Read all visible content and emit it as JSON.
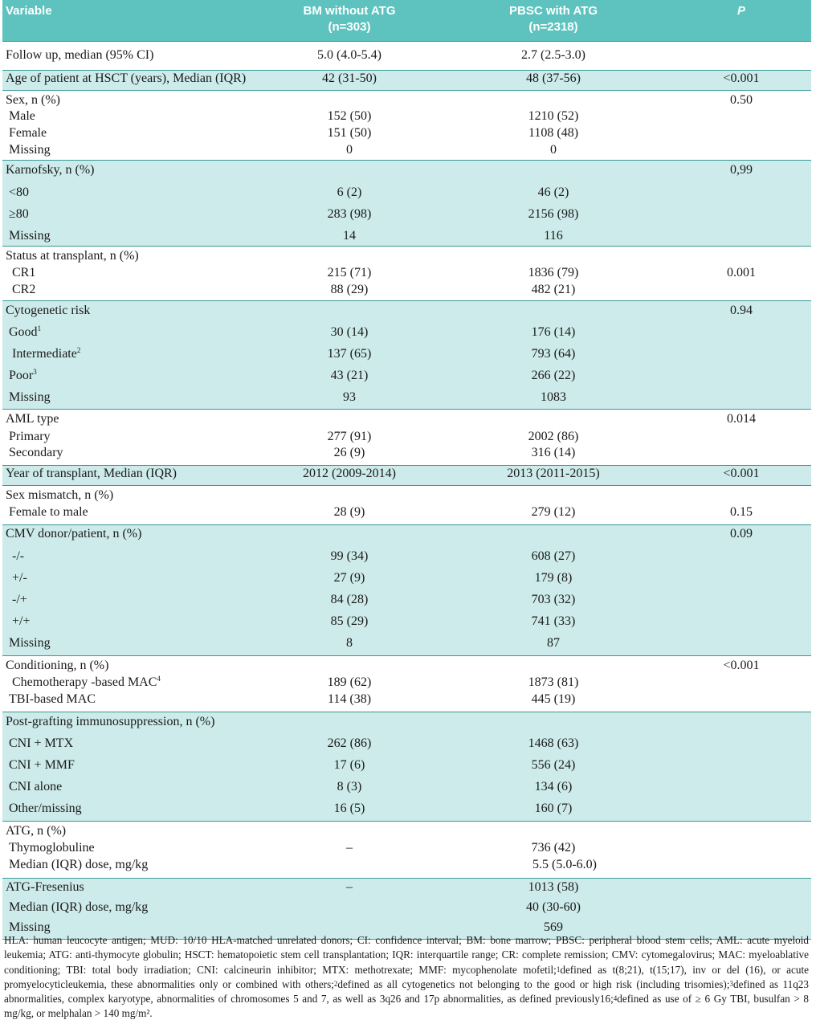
{
  "header": {
    "variable": "Variable",
    "bm_line1": "BM without ATG",
    "bm_line2": "(n=303)",
    "pbsc_line1": "PBSC with ATG",
    "pbsc_line2": "(n=2318)",
    "p": "P"
  },
  "rows": {
    "follow": {
      "label": "Follow up, median (95% CI)",
      "bm": "5.0 (4.0-5.4)",
      "pbsc": "2.7 (2.5-3.0)",
      "p": ""
    },
    "age": {
      "label": "Age of patient at HSCT (years), Median (IQR)",
      "bm": "42 (31-50)",
      "pbsc": "48 (37-56)",
      "p": "<0.001"
    },
    "sex": {
      "label": "Sex, n (%)",
      "p": "0.50",
      "male": {
        "label": "Male",
        "bm": "152 (50)",
        "pbsc": "1210 (52)"
      },
      "female": {
        "label": "Female",
        "bm": "151 (50)",
        "pbsc": "1108 (48)"
      },
      "missing": {
        "label": "Missing",
        "bm": "0",
        "pbsc": "0"
      }
    },
    "karnofsky": {
      "label": "Karnofsky, n (%)",
      "p": "0,99",
      "lt80": {
        "label": "<80",
        "bm": "6 (2)",
        "pbsc": "46 (2)"
      },
      "ge80": {
        "label": "≥80",
        "bm": "283 (98)",
        "pbsc": "2156 (98)"
      },
      "missing": {
        "label": "Missing",
        "bm": "14",
        "pbsc": "116"
      }
    },
    "status": {
      "label": "Status at transplant, n (%)",
      "p": "0.001",
      "cr1": {
        "label": "CR1",
        "bm": "215 (71)",
        "pbsc": "1836 (79)"
      },
      "cr2": {
        "label": "CR2",
        "bm": "88 (29)",
        "pbsc": "482 (21)"
      }
    },
    "cyto": {
      "label": "Cytogenetic risk",
      "p": "0.94",
      "good": {
        "label": "Good",
        "sup": "1",
        "bm": "30 (14)",
        "pbsc": "176 (14)"
      },
      "inter": {
        "label": "Intermediate",
        "sup": "2",
        "bm": "137 (65)",
        "pbsc": "793 (64)"
      },
      "poor": {
        "label": "Poor",
        "sup": "3",
        "bm": "43 (21)",
        "pbsc": "266 (22)"
      },
      "missing": {
        "label": "Missing",
        "bm": "93",
        "pbsc": "1083"
      }
    },
    "aml": {
      "label": "AML type",
      "p": "0.014",
      "primary": {
        "label": "Primary",
        "bm": "277 (91)",
        "pbsc": "2002 (86)"
      },
      "secondary": {
        "label": "Secondary",
        "bm": "26 (9)",
        "pbsc": "316 (14)"
      }
    },
    "year": {
      "label": "Year of transplant, Median (IQR)",
      "bm": "2012 (2009-2014)",
      "pbsc": "2013 (2011-2015)",
      "p": "<0.001"
    },
    "sexmm": {
      "label": "Sex mismatch, n (%)",
      "ftm": {
        "label": "Female to male",
        "bm": "28 (9)",
        "pbsc": "279 (12)",
        "p": "0.15"
      }
    },
    "cmv": {
      "label": "CMV donor/patient, n (%)",
      "p": "0.09",
      "nn": {
        "label": "-/-",
        "bm": "99 (34)",
        "pbsc": "608 (27)"
      },
      "pn": {
        "label": "+/-",
        "bm": "27 (9)",
        "pbsc": "179 (8)"
      },
      "np": {
        "label": "-/+",
        "bm": "84 (28)",
        "pbsc": "703 (32)"
      },
      "pp": {
        "label": "+/+",
        "bm": "85 (29)",
        "pbsc": "741 (33)"
      },
      "missing": {
        "label": "Missing",
        "bm": "8",
        "pbsc": "87"
      }
    },
    "cond": {
      "label": "Conditioning, n (%)",
      "p": "<0.001",
      "chemo": {
        "label": "Chemotherapy -based MAC",
        "sup": "4",
        "bm": "189 (62)",
        "pbsc": "1873 (81)"
      },
      "tbi": {
        "label": "TBI-based MAC",
        "bm": "114 (38)",
        "pbsc": "445 (19)"
      }
    },
    "post": {
      "label": "Post-grafting immunosuppression, n (%)",
      "mtx": {
        "label": "CNI + MTX",
        "bm": "262 (86)",
        "pbsc": "1468 (63)"
      },
      "mmf": {
        "label": "CNI + MMF",
        "bm": "17 (6)",
        "pbsc": "556 (24)"
      },
      "alone": {
        "label": "CNI alone",
        "bm": "8 (3)",
        "pbsc": "134 (6)"
      },
      "other": {
        "label": "Other/missing",
        "bm": "16 (5)",
        "pbsc": "160 (7)"
      }
    },
    "atg": {
      "label": "ATG, n (%)",
      "thymo": {
        "label": "Thymoglobuline",
        "bm": "–",
        "pbsc": "736 (42)"
      },
      "dose": {
        "label": "Median (IQR) dose, mg/kg",
        "bm": "",
        "pbsc": "5.5 (5.0-6.0)"
      }
    },
    "fres": {
      "label": "ATG-Fresenius",
      "bm": "–",
      "pbsc": "1013 (58)",
      "dose": {
        "label": "Median (IQR) dose, mg/kg",
        "bm": "",
        "pbsc": "40 (30-60)"
      },
      "missing": {
        "label": "Missing",
        "bm": "",
        "pbsc": "569"
      }
    }
  },
  "footnote": {
    "p1": "HLA: human leucocyte antigen; MUD: 10/10 HLA-matched unrelated donors; CI: confidence interval; BM: bone marrow; PBSC: peripheral blood stem cells; AML: acute myeloid leukemia; ATG: anti-thymocyte globulin; HSCT: hematopoietic stem cell transplantation; IQR: interquartile range; CR: complete remission; CMV: cytomegalovirus; MAC: myeloablative conditioning; TBI: total body irradiation; CNI: calcineurin inhibitor; MTX: methotrexate; MMF: mycophenolate mofetil;",
    "s1": "1",
    "p2": "defined as t(8;21), t(15;17), inv or del (16), or acute promyelocyticleukemia, these abnormalities only or combined with others;",
    "s2": "2",
    "p3": "defined as all cytogenetics not belonging to the good or high risk (including trisomies);",
    "s3": "3",
    "p4": "defined as 11q23 abnormalities, complex karyotype, abnormalities of chromosomes 5 and 7, as well as 3q26 and 17p abnormalities,  as defined previously16;",
    "s4": "4",
    "p5": "defined as use of ≥ 6 Gy TBI, busulfan > 8 mg/kg, or melphalan > 140 mg/m²."
  }
}
